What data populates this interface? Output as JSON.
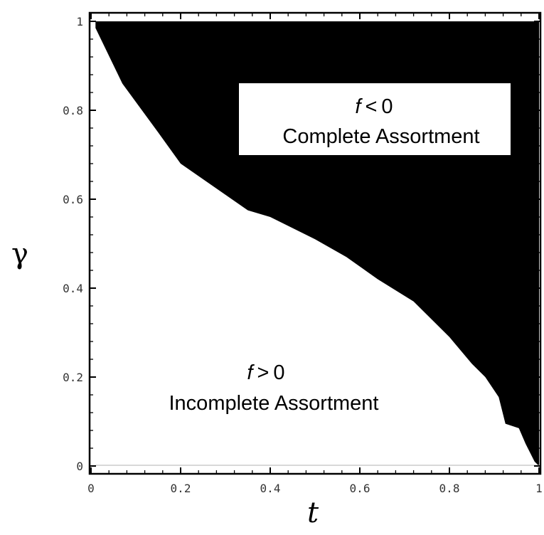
{
  "chart_data": {
    "type": "area",
    "xlabel": "t",
    "ylabel": "γ",
    "xlim": [
      0,
      1
    ],
    "ylim": [
      0,
      1
    ],
    "x_ticks": [
      "0",
      "0.2",
      "0.4",
      "0.6",
      "0.8",
      "1"
    ],
    "y_ticks": [
      "0",
      "0.2",
      "0.4",
      "0.6",
      "0.8",
      "1"
    ],
    "grid": false,
    "boundary": {
      "x": [
        0.01,
        0.07,
        0.15,
        0.2,
        0.3,
        0.35,
        0.4,
        0.5,
        0.57,
        0.64,
        0.72,
        0.8,
        0.85,
        0.88,
        0.91,
        0.925,
        0.955,
        0.97,
        0.99
      ],
      "y": [
        0.985,
        0.86,
        0.75,
        0.68,
        0.61,
        0.575,
        0.56,
        0.51,
        0.47,
        0.42,
        0.37,
        0.29,
        0.23,
        0.2,
        0.155,
        0.095,
        0.085,
        0.05,
        0.01
      ]
    },
    "regions": [
      {
        "sign_text": "f < 0",
        "var": "f",
        "op": "<",
        "num": "0",
        "label": "Complete Assortment",
        "fill": "#000000"
      },
      {
        "sign_text": "f > 0",
        "var": "f",
        "op": ">",
        "num": "0",
        "label": "Incomplete Assortment",
        "fill": "#ffffff"
      }
    ]
  }
}
